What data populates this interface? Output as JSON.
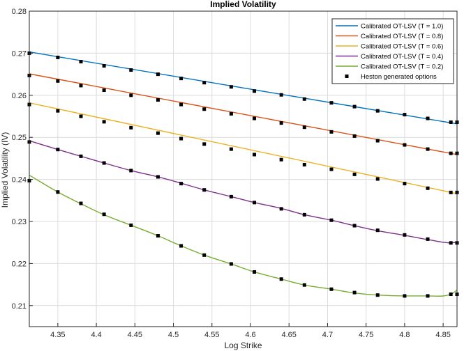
{
  "chart_data": {
    "type": "line",
    "title": "Implied Volatility",
    "xlabel": "Log Strike",
    "ylabel": "Implied Volatility (IV)",
    "xlim": [
      4.313,
      4.868
    ],
    "ylim": [
      0.205,
      0.28
    ],
    "xticks": [
      "4.35",
      "4.4",
      "4.45",
      "4.5",
      "4.55",
      "4.6",
      "4.65",
      "4.7",
      "4.75",
      "4.8",
      "4.85"
    ],
    "yticks": [
      "0.21",
      "0.22",
      "0.23",
      "0.24",
      "0.25",
      "0.26",
      "0.27",
      "0.28"
    ],
    "grid": true,
    "legend_position": "top-right",
    "series": [
      {
        "name": "Calibrated OT-LSV (T = 1.0)",
        "color": "#0072BD",
        "x": [
          4.313,
          4.868
        ],
        "y": [
          0.2703,
          0.2532
        ]
      },
      {
        "name": "Calibrated OT-LSV (T = 0.8)",
        "color": "#D95319",
        "x": [
          4.313,
          4.868
        ],
        "y": [
          0.2651,
          0.2459
        ]
      },
      {
        "name": "Calibrated OT-LSV (T = 0.6)",
        "color": "#EDB120",
        "x": [
          4.313,
          4.868
        ],
        "y": [
          0.2582,
          0.2366
        ]
      },
      {
        "name": "Calibrated OT-LSV (T = 0.4)",
        "color": "#7E2F8E",
        "x": [
          4.313,
          4.35,
          4.38,
          4.41,
          4.445,
          4.48,
          4.51,
          4.54,
          4.575,
          4.605,
          4.64,
          4.67,
          4.705,
          4.735,
          4.765,
          4.8,
          4.83,
          4.86,
          4.868
        ],
        "y": [
          0.2492,
          0.2471,
          0.2455,
          0.2439,
          0.2421,
          0.2406,
          0.2391,
          0.2375,
          0.2359,
          0.2345,
          0.2331,
          0.2316,
          0.2303,
          0.229,
          0.2278,
          0.2267,
          0.2257,
          0.2249,
          0.2251
        ]
      },
      {
        "name": "Calibrated OT-LSV (T = 0.2)",
        "color": "#77AC30",
        "x": [
          4.313,
          4.35,
          4.38,
          4.41,
          4.445,
          4.48,
          4.51,
          4.54,
          4.575,
          4.605,
          4.64,
          4.67,
          4.705,
          4.735,
          4.765,
          4.8,
          4.83,
          4.86,
          4.868
        ],
        "y": [
          0.241,
          0.237,
          0.2342,
          0.2316,
          0.2291,
          0.2266,
          0.2242,
          0.222,
          0.2199,
          0.218,
          0.2163,
          0.2149,
          0.2139,
          0.213,
          0.2125,
          0.2123,
          0.2123,
          0.2127,
          0.2137
        ]
      }
    ],
    "markers": {
      "name": "Heston generated options",
      "color": "#000000",
      "x": [
        4.313,
        4.35,
        4.38,
        4.41,
        4.445,
        4.48,
        4.51,
        4.54,
        4.575,
        4.605,
        4.64,
        4.67,
        4.705,
        4.735,
        4.765,
        4.8,
        4.83,
        4.86,
        4.868
      ],
      "series_y": [
        [
          0.27,
          0.269,
          0.268,
          0.267,
          0.266,
          0.265,
          0.264,
          0.263,
          0.262,
          0.261,
          0.2601,
          0.2591,
          0.2582,
          0.2573,
          0.2563,
          0.2554,
          0.2545,
          0.2536,
          0.2536
        ],
        [
          0.2647,
          0.2634,
          0.2623,
          0.2612,
          0.26,
          0.2589,
          0.2578,
          0.2567,
          0.2556,
          0.2545,
          0.2534,
          0.2524,
          0.2513,
          0.2503,
          0.2492,
          0.2482,
          0.2472,
          0.2462,
          0.2462
        ],
        [
          0.2578,
          0.2563,
          0.255,
          0.2537,
          0.2523,
          0.251,
          0.2497,
          0.2484,
          0.2472,
          0.2459,
          0.2447,
          0.2435,
          0.2424,
          0.2412,
          0.2401,
          0.239,
          0.2379,
          0.2369,
          0.2369
        ],
        [
          0.2489,
          0.2471,
          0.2455,
          0.2439,
          0.2421,
          0.2406,
          0.239,
          0.2375,
          0.2359,
          0.2345,
          0.233,
          0.2316,
          0.2303,
          0.229,
          0.2279,
          0.2268,
          0.2258,
          0.2249,
          0.2249
        ],
        [
          0.2397,
          0.237,
          0.2343,
          0.2317,
          0.2291,
          0.2266,
          0.2242,
          0.222,
          0.2199,
          0.218,
          0.2163,
          0.2149,
          0.2139,
          0.2131,
          0.2125,
          0.2123,
          0.2123,
          0.2127,
          0.2127
        ]
      ]
    }
  }
}
